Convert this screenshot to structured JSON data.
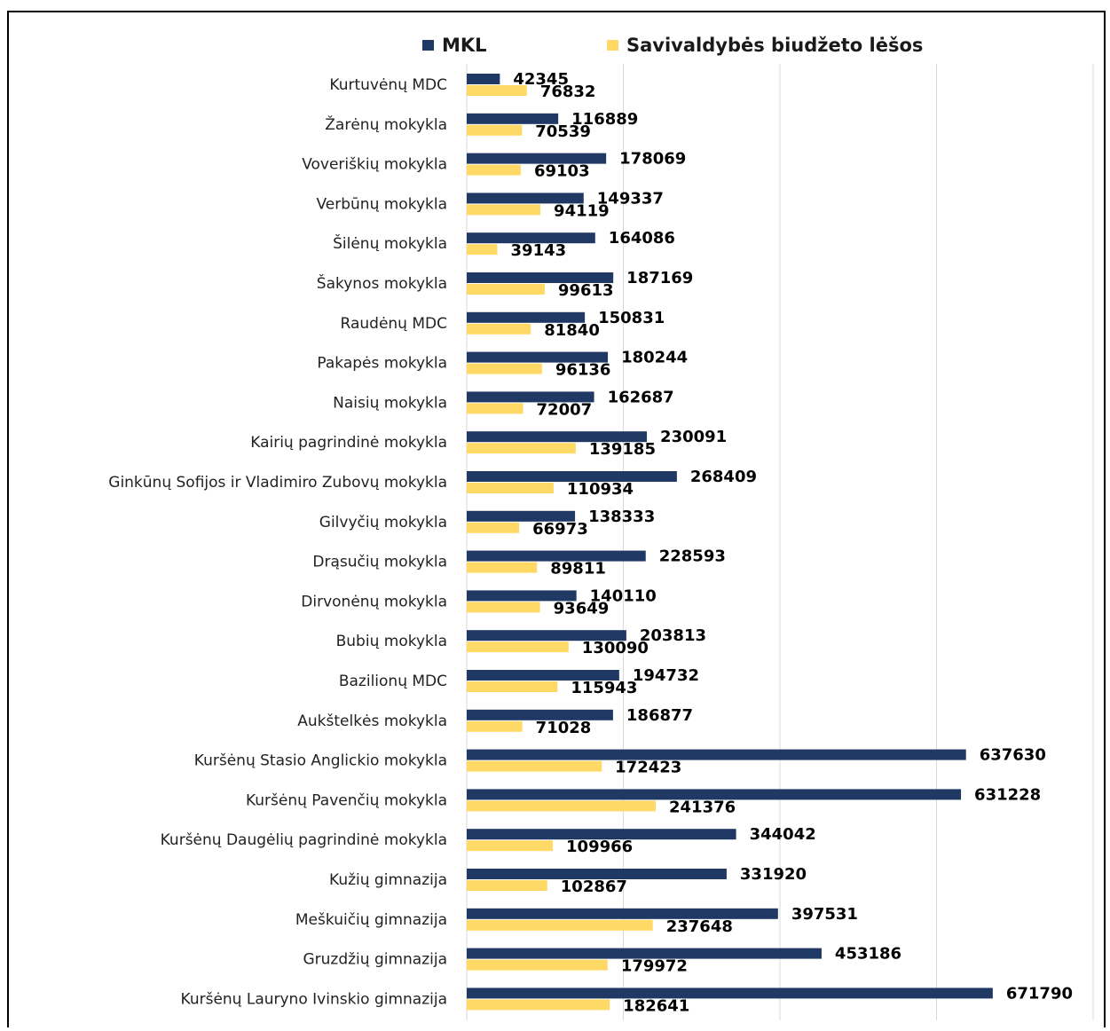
{
  "chart_data": {
    "type": "bar",
    "orientation": "horizontal",
    "categories": [
      "Kurtuvėnų MDC",
      "Žarėnų  mokykla",
      "Voveriškių mokykla",
      "Verbūnų mokykla",
      "Šilėnų mokykla",
      "Šakynos mokykla",
      "Raudėnų MDC",
      "Pakapės  mokykla",
      "Naisių mokykla",
      "Kairių pagrindinė mokykla",
      "Ginkūnų Sofijos ir Vladimiro Zubovų  mokykla",
      "Gilvyčių mokykla",
      "Drąsučių  mokykla",
      "Dirvonėnų mokykla",
      "Bubių mokykla",
      "Bazilionų  MDC",
      "Aukštelkės mokykla",
      "Kuršėnų Stasio Anglickio mokykla",
      "Kuršėnų Pavenčių mokykla",
      "Kuršėnų Daugėlių pagrindinė mokykla",
      "Kužių gimnazija",
      "Meškuičių gimnazija",
      "Gruzdžių gimnazija",
      "Kuršėnų Lauryno  Ivinskio gimnazija"
    ],
    "series": [
      {
        "name": "MKL",
        "color": "#1f3864",
        "values": [
          42345,
          116889,
          178069,
          149337,
          164086,
          187169,
          150831,
          180244,
          162687,
          230091,
          268409,
          138333,
          228593,
          140110,
          203813,
          194732,
          186877,
          637630,
          631228,
          344042,
          331920,
          397531,
          453186,
          671790
        ]
      },
      {
        "name": "Savivaldybės biudžeto lėšos",
        "color": "#ffd966",
        "values": [
          76832,
          70539,
          69103,
          94119,
          39143,
          99613,
          81840,
          96136,
          72007,
          139185,
          110934,
          66973,
          89811,
          93649,
          130090,
          115943,
          71028,
          172423,
          241376,
          109966,
          102867,
          237648,
          179972,
          182641
        ]
      }
    ],
    "xlim": [
      0,
      800000
    ],
    "grid": true,
    "legend_position": "top"
  }
}
